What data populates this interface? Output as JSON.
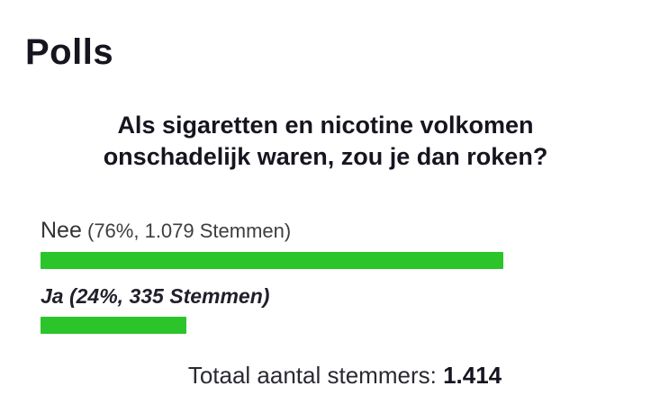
{
  "page": {
    "title": "Polls"
  },
  "poll": {
    "question": "Als sigaretten en nicotine volkomen onschadelijk waren, zou je dan roken?",
    "options": [
      {
        "label": "Nee",
        "detail": "(76%, 1.079 Stemmen)",
        "percent": 76,
        "votes": 1079,
        "voted": false
      },
      {
        "label": "Ja",
        "detail": "(24%, 335 Stemmen)",
        "percent": 24,
        "votes": 335,
        "voted": true
      }
    ],
    "total_label": "Totaal aantal stemmers:",
    "total_value": "1.414",
    "bar_color": "#2bc52b"
  },
  "chart_data": {
    "type": "bar",
    "orientation": "horizontal",
    "title": "Als sigaretten en nicotine volkomen onschadelijk waren, zou je dan roken?",
    "categories": [
      "Nee",
      "Ja"
    ],
    "values": [
      76,
      24
    ],
    "votes": [
      1079,
      335
    ],
    "total_votes": 1414,
    "value_unit": "%",
    "xlim": [
      0,
      100
    ],
    "bar_color": "#2bc52b",
    "legend": false,
    "grid": false
  }
}
